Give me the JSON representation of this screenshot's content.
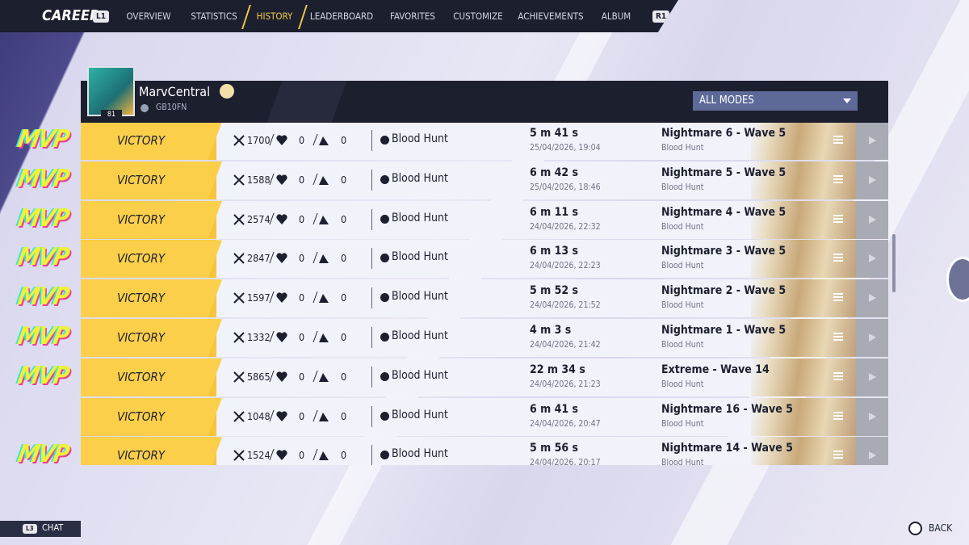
{
  "nav": {
    "title": "CAREER",
    "left_button": "L1",
    "right_button": "R1",
    "active_tab": 2,
    "tabs": [
      "OVERVIEW",
      "STATISTICS",
      "HISTORY",
      "LEADERBOARD",
      "FAVORITES",
      "CUSTOMIZE",
      "ACHIEVEMENTS",
      "ALBUM"
    ]
  },
  "profile": {
    "name": "MarvCentral",
    "id": "GB10FN",
    "level": "81"
  },
  "filter": "ALL MODES",
  "matches": [
    {
      "badge": "MVP",
      "result": "VICTORY",
      "kills": 1700,
      "deaths": 0,
      "assists": 0,
      "mode": "Blood Hunt",
      "duration": "5 m 41 s",
      "date": "25/04/2026, 19:04",
      "map": "Nightmare 6 - Wave 5",
      "map_mode": "Blood Hunt"
    },
    {
      "badge": "MVP",
      "result": "VICTORY",
      "kills": 1588,
      "deaths": 0,
      "assists": 0,
      "mode": "Blood Hunt",
      "duration": "6 m 42 s",
      "date": "25/04/2026, 18:46",
      "map": "Nightmare 5 - Wave 5",
      "map_mode": "Blood Hunt"
    },
    {
      "badge": "MVP",
      "result": "VICTORY",
      "kills": 2574,
      "deaths": 0,
      "assists": 0,
      "mode": "Blood Hunt",
      "duration": "6 m 11 s",
      "date": "24/04/2026, 22:32",
      "map": "Nightmare 4 - Wave 5",
      "map_mode": "Blood Hunt"
    },
    {
      "badge": "MVP",
      "result": "VICTORY",
      "kills": 2847,
      "deaths": 0,
      "assists": 0,
      "mode": "Blood Hunt",
      "duration": "6 m 13 s",
      "date": "24/04/2026, 22:23",
      "map": "Nightmare 3 - Wave 5",
      "map_mode": "Blood Hunt"
    },
    {
      "badge": "MVP",
      "result": "VICTORY",
      "kills": 1597,
      "deaths": 0,
      "assists": 0,
      "mode": "Blood Hunt",
      "duration": "5 m 52 s",
      "date": "24/04/2026, 21:52",
      "map": "Nightmare 2 - Wave 5",
      "map_mode": "Blood Hunt"
    },
    {
      "badge": "MVP",
      "result": "VICTORY",
      "kills": 1332,
      "deaths": 0,
      "assists": 0,
      "mode": "Blood Hunt",
      "duration": "4 m 3 s",
      "date": "24/04/2026, 21:42",
      "map": "Nightmare 1 - Wave 5",
      "map_mode": "Blood Hunt"
    },
    {
      "badge": "MVP",
      "result": "VICTORY",
      "kills": 5865,
      "deaths": 0,
      "assists": 0,
      "mode": "Blood Hunt",
      "duration": "22 m 34 s",
      "date": "24/04/2026, 21:23",
      "map": "Extreme - Wave 14",
      "map_mode": "Blood Hunt"
    },
    {
      "badge": null,
      "result": "VICTORY",
      "kills": 1048,
      "deaths": 0,
      "assists": 0,
      "mode": "Blood Hunt",
      "duration": "6 m 41 s",
      "date": "24/04/2026, 20:47",
      "map": "Nightmare 16 - Wave 5",
      "map_mode": "Blood Hunt"
    },
    {
      "badge": "MVP",
      "result": "VICTORY",
      "kills": 1524,
      "deaths": 0,
      "assists": 0,
      "mode": "Blood Hunt",
      "duration": "5 m 56 s",
      "date": "24/04/2026, 20:17",
      "map": "Nightmare 14 - Wave 5",
      "map_mode": "Blood Hunt"
    }
  ],
  "footer": {
    "chat_button": "L3",
    "chat": "CHAT",
    "back": "BACK"
  }
}
